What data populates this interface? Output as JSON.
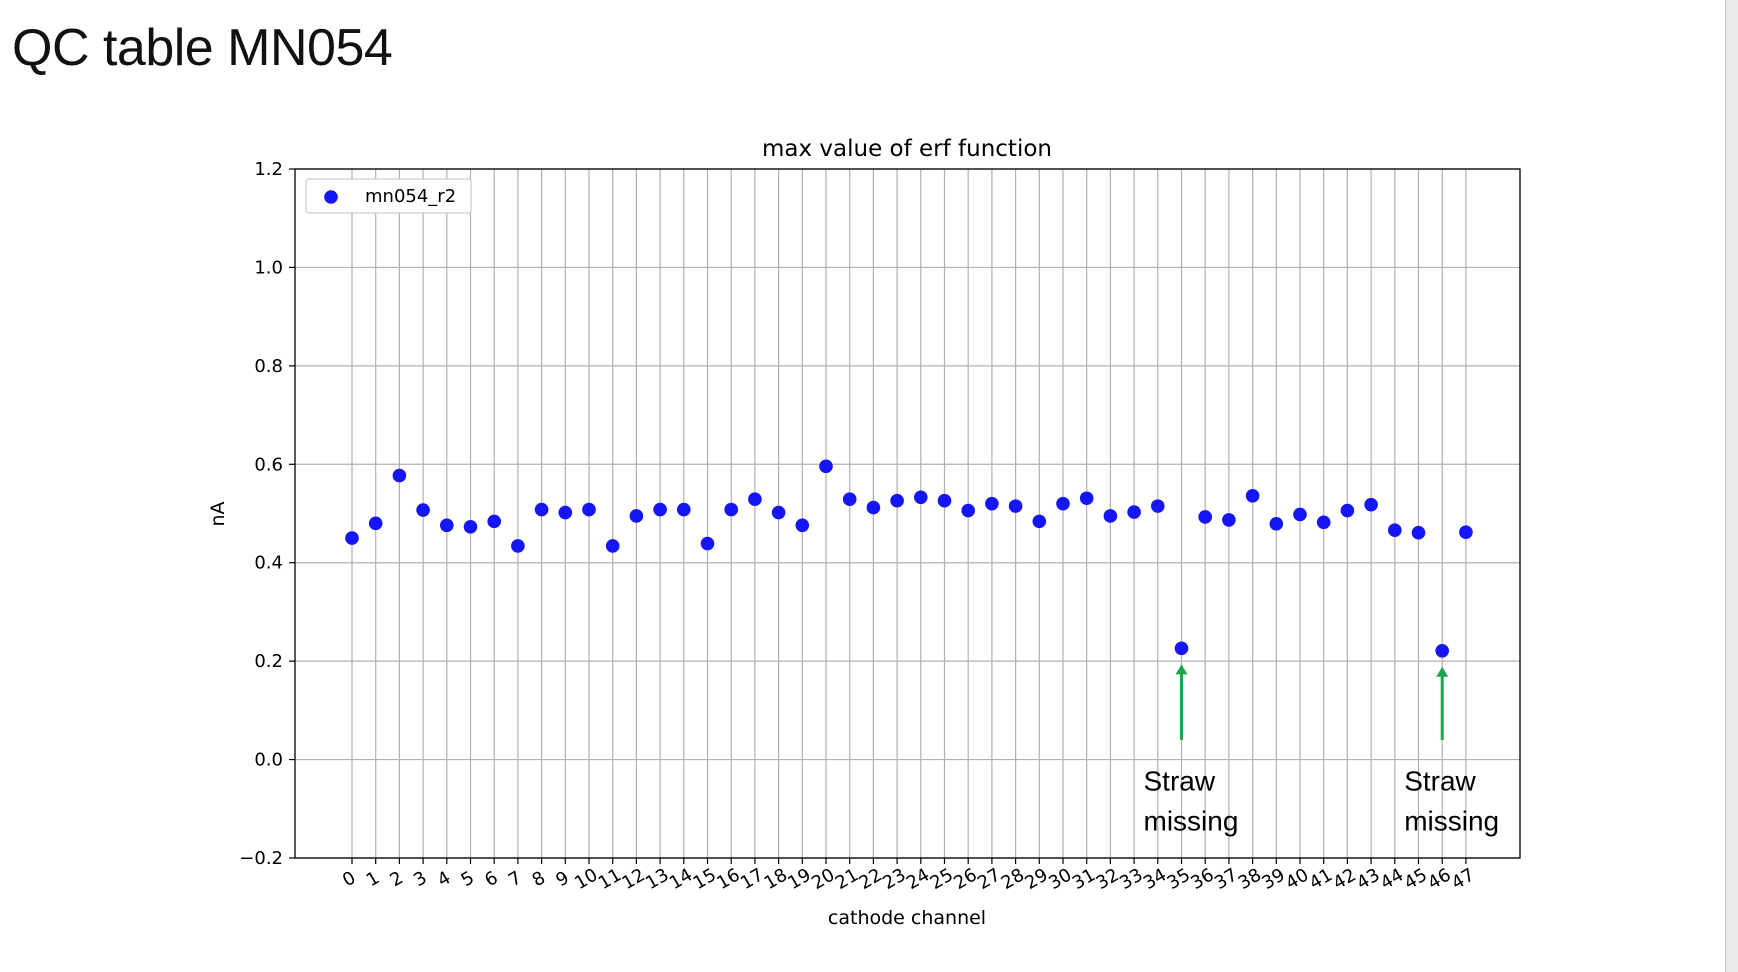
{
  "slide": {
    "title": "QC table MN054"
  },
  "colors": {
    "series": "#1515f5",
    "grid": "#b0b0b0",
    "annotation_arrow": "#1aa64a",
    "text": "#000000"
  },
  "chart_data": {
    "type": "scatter",
    "title": "max value of erf function",
    "xlabel": "cathode channel",
    "ylabel": "nA",
    "ylim": [
      -0.2,
      1.2
    ],
    "yticks": [
      "1.2",
      "1.0",
      "0.8",
      "0.6",
      "0.4",
      "0.2",
      "0.0",
      "−0.2"
    ],
    "ytick_values": [
      1.2,
      1.0,
      0.8,
      0.6,
      0.4,
      0.2,
      0.0,
      -0.2
    ],
    "x": [
      0,
      1,
      2,
      3,
      4,
      5,
      6,
      7,
      8,
      9,
      10,
      11,
      12,
      13,
      14,
      15,
      16,
      17,
      18,
      19,
      20,
      21,
      22,
      23,
      24,
      25,
      26,
      27,
      28,
      29,
      30,
      31,
      32,
      33,
      34,
      35,
      36,
      37,
      38,
      39,
      40,
      41,
      42,
      43,
      44,
      45,
      46,
      47
    ],
    "xticks": [
      "0",
      "1",
      "2",
      "3",
      "4",
      "5",
      "6",
      "7",
      "8",
      "9",
      "10",
      "11",
      "12",
      "13",
      "14",
      "15",
      "16",
      "17",
      "18",
      "19",
      "20",
      "21",
      "22",
      "23",
      "24",
      "25",
      "26",
      "27",
      "28",
      "29",
      "30",
      "31",
      "32",
      "33",
      "34",
      "35",
      "36",
      "37",
      "38",
      "39",
      "40",
      "41",
      "42",
      "43",
      "44",
      "45",
      "46",
      "47"
    ],
    "grid": true,
    "legend_position": "top-left",
    "series": [
      {
        "name": "mn054_r2",
        "color": "#1515f5",
        "values": [
          0.45,
          0.48,
          0.577,
          0.507,
          0.476,
          0.473,
          0.484,
          0.434,
          0.508,
          0.502,
          0.508,
          0.434,
          0.495,
          0.508,
          0.508,
          0.439,
          0.508,
          0.529,
          0.502,
          0.476,
          0.596,
          0.529,
          0.512,
          0.526,
          0.533,
          0.526,
          0.506,
          0.52,
          0.515,
          0.484,
          0.52,
          0.531,
          0.495,
          0.503,
          0.515,
          0.226,
          0.493,
          0.487,
          0.536,
          0.479,
          0.498,
          0.482,
          0.506,
          0.518,
          0.466,
          0.461,
          0.221,
          0.462
        ]
      }
    ],
    "annotations": [
      {
        "x": 35,
        "y": 0.226,
        "line1": "Straw",
        "line2": "missing"
      },
      {
        "x": 46,
        "y": 0.221,
        "line1": "Straw",
        "line2": "missing"
      }
    ]
  }
}
